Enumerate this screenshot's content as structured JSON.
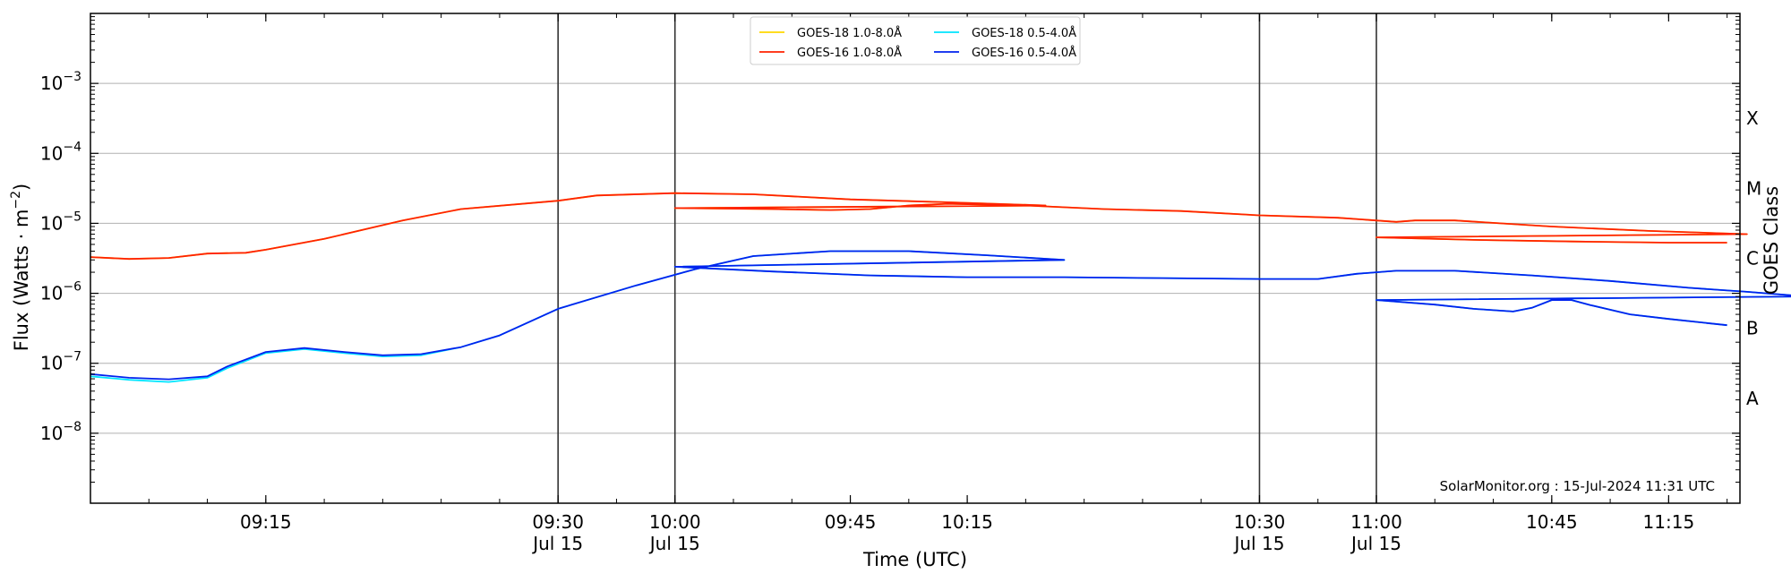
{
  "chart_data": {
    "type": "line",
    "xlabel": "Time (UTC)",
    "ylabel_base": "Flux (Watts · m",
    "ylabel_exp": "−2",
    "ylabel_close": ")",
    "right_label": "GOES Class",
    "credit": "SolarMonitor.org : 15-Jul-2024 11:31 UTC",
    "x_range_minutes": [
      9.1,
      11.311
    ],
    "ylim_exp": [
      -9,
      -2
    ],
    "yscale": "log",
    "grid": "horizontal",
    "legend_position": "top-center",
    "y_ticks": [
      {
        "exp": -3,
        "base": "10",
        "sup": "−3"
      },
      {
        "exp": -4,
        "base": "10",
        "sup": "−4"
      },
      {
        "exp": -5,
        "base": "10",
        "sup": "−5"
      },
      {
        "exp": -6,
        "base": "10",
        "sup": "−6"
      },
      {
        "exp": -7,
        "base": "10",
        "sup": "−7"
      },
      {
        "exp": -8,
        "base": "10",
        "sup": "−8"
      }
    ],
    "x_ticks": [
      {
        "t": 9.25,
        "label": "09:15",
        "date": ""
      },
      {
        "t": 9.5,
        "label": "09:30",
        "date": "Jul 15"
      },
      {
        "t": 9.75,
        "label": "09:45",
        "date": ""
      },
      {
        "t": 10.0,
        "label": "10:00",
        "date": "Jul 15"
      },
      {
        "t": 10.25,
        "label": "10:15",
        "date": ""
      },
      {
        "t": 10.5,
        "label": "10:30",
        "date": "Jul 15"
      },
      {
        "t": 10.75,
        "label": "10:45",
        "date": ""
      },
      {
        "t": 11.0,
        "label": "11:00",
        "date": "Jul 15"
      },
      {
        "t": 11.25,
        "label": "11:15",
        "date": ""
      }
    ],
    "vlines": [
      9.5,
      10.0,
      10.5,
      11.0
    ],
    "goes_classes": [
      {
        "label": "X",
        "exp": -3.5
      },
      {
        "label": "M",
        "exp": -4.5
      },
      {
        "label": "C",
        "exp": -5.5
      },
      {
        "label": "B",
        "exp": -6.5
      },
      {
        "label": "A",
        "exp": -7.5
      }
    ],
    "series": [
      {
        "name": "GOES-18 1.0-8.0Å",
        "color": "#ffd700",
        "points": [
          [
            9.1,
            3.3e-06
          ],
          [
            9.133,
            3.1e-06
          ],
          [
            9.167,
            3.2e-06
          ],
          [
            9.2,
            3.7e-06
          ],
          [
            9.233,
            3.8e-06
          ],
          [
            9.25,
            4.2e-06
          ],
          [
            9.3,
            6e-06
          ],
          [
            9.367,
            1.1e-05
          ],
          [
            9.417,
            1.6e-05
          ],
          [
            9.5,
            2.1e-05
          ],
          [
            9.533,
            2.5e-05
          ],
          [
            9.6,
            2.7e-05
          ],
          [
            9.667,
            2.6e-05
          ],
          [
            9.75,
            2.2e-05
          ],
          [
            9.833,
            2e-05
          ],
          [
            9.917,
            1.8e-05
          ],
          [
            10.0,
            1.65e-05
          ],
          [
            10.083,
            1.6e-05
          ],
          [
            10.133,
            1.55e-05
          ],
          [
            10.167,
            1.6e-05
          ],
          [
            10.2,
            1.8e-05
          ],
          [
            10.233,
            1.9e-05
          ],
          [
            10.3,
            1.8e-05
          ],
          [
            10.367,
            1.6e-05
          ],
          [
            10.433,
            1.5e-05
          ],
          [
            10.5,
            1.3e-05
          ],
          [
            10.567,
            1.2e-05
          ],
          [
            10.617,
            1.05e-05
          ],
          [
            10.633,
            1.1e-05
          ],
          [
            10.667,
            1.1e-05
          ],
          [
            10.75,
            9e-06
          ],
          [
            10.833,
            7.8e-06
          ],
          [
            10.917,
            7e-06
          ],
          [
            11.0,
            6.3e-06
          ],
          [
            11.083,
            5.8e-06
          ],
          [
            11.167,
            5.5e-06
          ],
          [
            11.25,
            5.3e-06
          ],
          [
            11.3,
            5.3e-06
          ]
        ]
      },
      {
        "name": "GOES-16 1.0-8.0Å",
        "color": "#ff2200",
        "points": [
          [
            9.1,
            3.3e-06
          ],
          [
            9.133,
            3.1e-06
          ],
          [
            9.167,
            3.2e-06
          ],
          [
            9.2,
            3.7e-06
          ],
          [
            9.233,
            3.8e-06
          ],
          [
            9.25,
            4.2e-06
          ],
          [
            9.3,
            6e-06
          ],
          [
            9.367,
            1.1e-05
          ],
          [
            9.417,
            1.6e-05
          ],
          [
            9.5,
            2.1e-05
          ],
          [
            9.533,
            2.5e-05
          ],
          [
            9.6,
            2.7e-05
          ],
          [
            9.667,
            2.6e-05
          ],
          [
            9.75,
            2.2e-05
          ],
          [
            9.833,
            2e-05
          ],
          [
            9.917,
            1.8e-05
          ],
          [
            10.0,
            1.65e-05
          ],
          [
            10.083,
            1.6e-05
          ],
          [
            10.133,
            1.55e-05
          ],
          [
            10.167,
            1.6e-05
          ],
          [
            10.2,
            1.8e-05
          ],
          [
            10.233,
            1.9e-05
          ],
          [
            10.3,
            1.8e-05
          ],
          [
            10.367,
            1.6e-05
          ],
          [
            10.433,
            1.5e-05
          ],
          [
            10.5,
            1.3e-05
          ],
          [
            10.567,
            1.2e-05
          ],
          [
            10.617,
            1.05e-05
          ],
          [
            10.633,
            1.1e-05
          ],
          [
            10.667,
            1.1e-05
          ],
          [
            10.75,
            9e-06
          ],
          [
            10.833,
            7.8e-06
          ],
          [
            10.917,
            7e-06
          ],
          [
            11.0,
            6.3e-06
          ],
          [
            11.083,
            5.8e-06
          ],
          [
            11.167,
            5.5e-06
          ],
          [
            11.25,
            5.3e-06
          ],
          [
            11.3,
            5.3e-06
          ]
        ]
      },
      {
        "name": "GOES-18 0.5-4.0Å",
        "color": "#00e5ff",
        "points": [
          [
            9.1,
            6.5e-08
          ],
          [
            9.133,
            5.8e-08
          ],
          [
            9.167,
            5.4e-08
          ],
          [
            9.2,
            6.2e-08
          ],
          [
            9.217,
            8.5e-08
          ],
          [
            9.25,
            1.4e-07
          ],
          [
            9.283,
            1.6e-07
          ],
          [
            9.317,
            1.4e-07
          ],
          [
            9.35,
            1.25e-07
          ],
          [
            9.383,
            1.3e-07
          ],
          [
            9.417,
            1.7e-07
          ],
          [
            9.45,
            2.5e-07
          ],
          [
            9.5,
            6e-07
          ],
          [
            9.567,
            1.3e-06
          ],
          [
            9.617,
            2.2e-06
          ],
          [
            9.667,
            3.4e-06
          ],
          [
            9.733,
            4e-06
          ],
          [
            9.8,
            4e-06
          ],
          [
            9.867,
            3.5e-06
          ],
          [
            9.933,
            3e-06
          ],
          [
            10.0,
            2.4e-06
          ],
          [
            10.083,
            2.05e-06
          ],
          [
            10.167,
            1.8e-06
          ],
          [
            10.25,
            1.7e-06
          ],
          [
            10.333,
            1.7e-06
          ],
          [
            10.417,
            1.65e-06
          ],
          [
            10.5,
            1.6e-06
          ],
          [
            10.55,
            1.6e-06
          ],
          [
            10.583,
            1.9e-06
          ],
          [
            10.617,
            2.1e-06
          ],
          [
            10.667,
            2.1e-06
          ],
          [
            10.733,
            1.8e-06
          ],
          [
            10.8,
            1.5e-06
          ],
          [
            10.867,
            1.2e-06
          ],
          [
            10.917,
            1.05e-06
          ],
          [
            10.967,
            9e-07
          ],
          [
            11.0,
            8e-07
          ],
          [
            11.05,
            6.9e-07
          ],
          [
            11.083,
            6e-07
          ],
          [
            11.117,
            5.5e-07
          ],
          [
            11.133,
            6.2e-07
          ],
          [
            11.15,
            8e-07
          ],
          [
            11.167,
            8e-07
          ],
          [
            11.183,
            6.8e-07
          ],
          [
            11.217,
            5e-07
          ],
          [
            11.25,
            4.3e-07
          ],
          [
            11.3,
            3.5e-07
          ]
        ]
      },
      {
        "name": "GOES-16 0.5-4.0Å",
        "color": "#0022ee",
        "points": [
          [
            9.1,
            7e-08
          ],
          [
            9.133,
            6.2e-08
          ],
          [
            9.167,
            5.9e-08
          ],
          [
            9.2,
            6.5e-08
          ],
          [
            9.217,
            9e-08
          ],
          [
            9.25,
            1.45e-07
          ],
          [
            9.283,
            1.65e-07
          ],
          [
            9.317,
            1.45e-07
          ],
          [
            9.35,
            1.3e-07
          ],
          [
            9.383,
            1.35e-07
          ],
          [
            9.417,
            1.7e-07
          ],
          [
            9.45,
            2.5e-07
          ],
          [
            9.5,
            6e-07
          ],
          [
            9.567,
            1.3e-06
          ],
          [
            9.617,
            2.2e-06
          ],
          [
            9.667,
            3.4e-06
          ],
          [
            9.733,
            4e-06
          ],
          [
            9.8,
            4e-06
          ],
          [
            9.867,
            3.5e-06
          ],
          [
            9.933,
            3e-06
          ],
          [
            10.0,
            2.4e-06
          ],
          [
            10.083,
            2.05e-06
          ],
          [
            10.167,
            1.8e-06
          ],
          [
            10.25,
            1.7e-06
          ],
          [
            10.333,
            1.7e-06
          ],
          [
            10.417,
            1.65e-06
          ],
          [
            10.5,
            1.6e-06
          ],
          [
            10.55,
            1.6e-06
          ],
          [
            10.583,
            1.9e-06
          ],
          [
            10.617,
            2.1e-06
          ],
          [
            10.667,
            2.1e-06
          ],
          [
            10.733,
            1.8e-06
          ],
          [
            10.8,
            1.5e-06
          ],
          [
            10.867,
            1.2e-06
          ],
          [
            10.917,
            1.05e-06
          ],
          [
            10.967,
            9e-07
          ],
          [
            11.0,
            8e-07
          ],
          [
            11.05,
            6.9e-07
          ],
          [
            11.083,
            6e-07
          ],
          [
            11.117,
            5.5e-07
          ],
          [
            11.133,
            6.2e-07
          ],
          [
            11.15,
            8e-07
          ],
          [
            11.167,
            8e-07
          ],
          [
            11.183,
            6.8e-07
          ],
          [
            11.217,
            5e-07
          ],
          [
            11.25,
            4.3e-07
          ],
          [
            11.3,
            3.5e-07
          ]
        ]
      }
    ]
  }
}
